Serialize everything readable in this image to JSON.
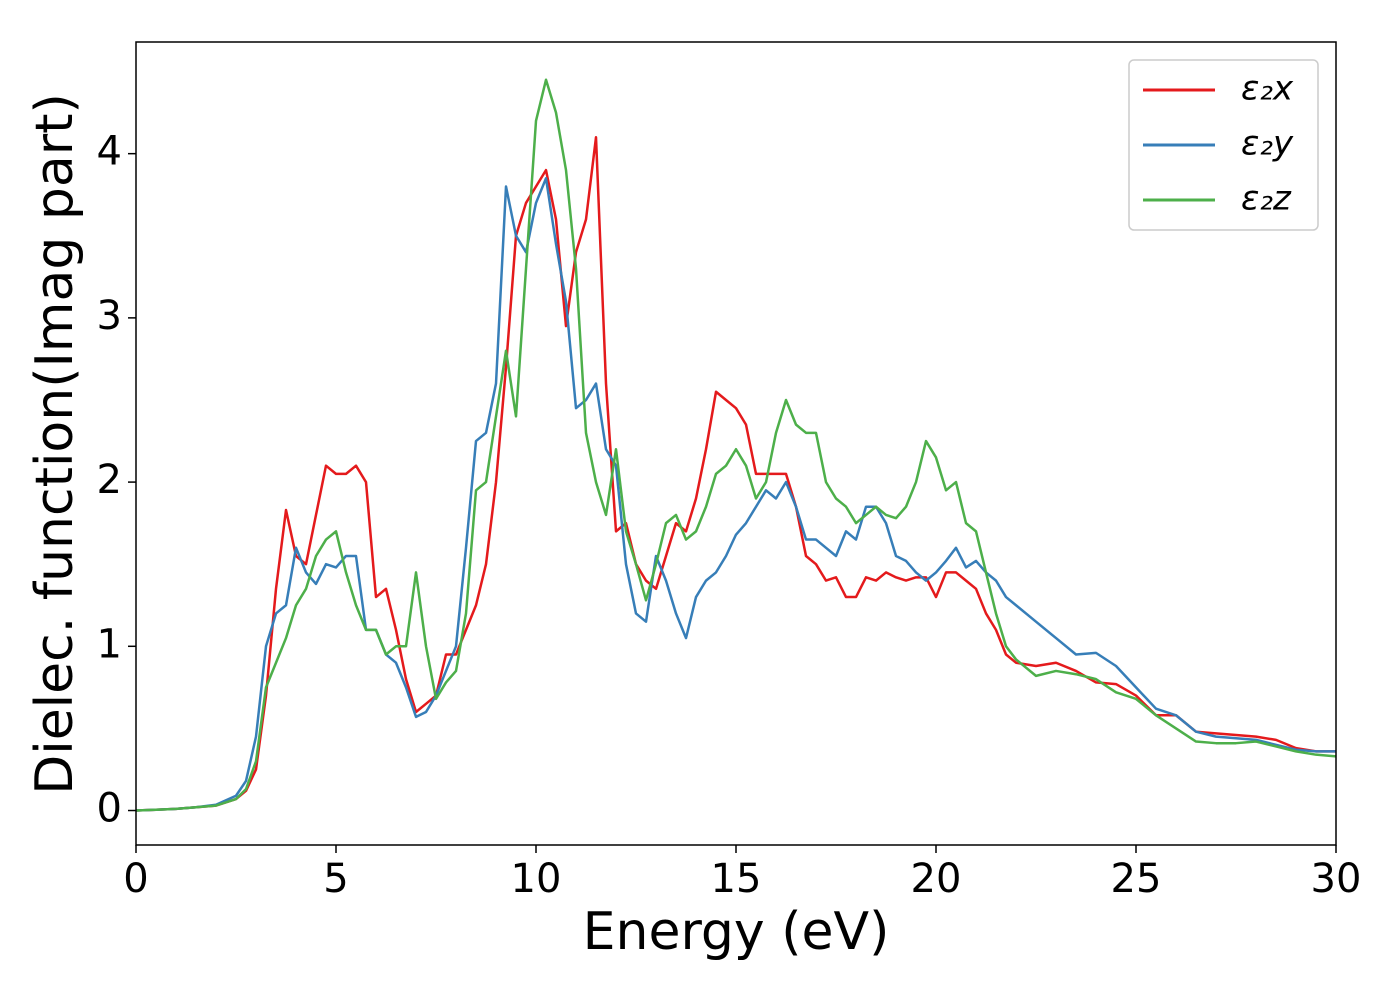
{
  "chart_data": {
    "type": "line",
    "xlabel": "Energy (eV)",
    "ylabel": "Dielec. function(Imag part)",
    "xlim": [
      0,
      30
    ],
    "ylim": [
      -0.21,
      4.68
    ],
    "xticks": [
      0,
      5,
      10,
      15,
      20,
      25,
      30
    ],
    "yticks": [
      0,
      1,
      2,
      3,
      4
    ],
    "legend": "upper right",
    "x": [
      0,
      0.5,
      1,
      1.5,
      2,
      2.5,
      2.75,
      3,
      3.25,
      3.5,
      3.75,
      4,
      4.25,
      4.5,
      4.75,
      5,
      5.25,
      5.5,
      5.75,
      6,
      6.25,
      6.5,
      6.75,
      7,
      7.25,
      7.5,
      7.75,
      8,
      8.25,
      8.5,
      8.75,
      9,
      9.25,
      9.5,
      9.75,
      10,
      10.25,
      10.5,
      10.75,
      11,
      11.25,
      11.5,
      11.75,
      12,
      12.25,
      12.5,
      12.75,
      13,
      13.25,
      13.5,
      13.75,
      14,
      14.25,
      14.5,
      14.75,
      15,
      15.25,
      15.5,
      15.75,
      16,
      16.25,
      16.5,
      16.75,
      17,
      17.25,
      17.5,
      17.75,
      18,
      18.25,
      18.5,
      18.75,
      19,
      19.25,
      19.5,
      19.75,
      20,
      20.25,
      20.5,
      20.75,
      21,
      21.25,
      21.5,
      21.75,
      22,
      22.5,
      23,
      23.5,
      24,
      24.5,
      25,
      25.5,
      26,
      26.5,
      27,
      27.5,
      28,
      28.5,
      29,
      29.5,
      30
    ],
    "series": [
      {
        "name": "ε₂x",
        "color": "#e41a1c",
        "values": [
          0,
          0.005,
          0.01,
          0.02,
          0.03,
          0.07,
          0.12,
          0.25,
          0.7,
          1.35,
          1.83,
          1.55,
          1.5,
          1.8,
          2.1,
          2.05,
          2.05,
          2.1,
          2.0,
          1.3,
          1.35,
          1.1,
          0.8,
          0.6,
          0.65,
          0.7,
          0.95,
          0.95,
          1.1,
          1.25,
          1.5,
          2.0,
          2.7,
          3.5,
          3.7,
          3.8,
          3.9,
          3.6,
          2.95,
          3.4,
          3.6,
          4.1,
          2.6,
          1.7,
          1.75,
          1.5,
          1.4,
          1.35,
          1.55,
          1.75,
          1.7,
          1.9,
          2.2,
          2.55,
          2.5,
          2.45,
          2.35,
          2.05,
          2.05,
          2.05,
          2.05,
          1.85,
          1.55,
          1.5,
          1.4,
          1.42,
          1.3,
          1.3,
          1.42,
          1.4,
          1.45,
          1.42,
          1.4,
          1.42,
          1.42,
          1.3,
          1.45,
          1.45,
          1.4,
          1.35,
          1.2,
          1.1,
          0.95,
          0.9,
          0.88,
          0.9,
          0.85,
          0.78,
          0.77,
          0.7,
          0.58,
          0.58,
          0.48,
          0.47,
          0.46,
          0.45,
          0.43,
          0.38,
          0.36,
          0.36
        ]
      },
      {
        "name": "ε₂y",
        "color": "#377eb8",
        "values": [
          0,
          0.005,
          0.01,
          0.02,
          0.035,
          0.09,
          0.18,
          0.45,
          1.0,
          1.2,
          1.25,
          1.6,
          1.45,
          1.38,
          1.5,
          1.48,
          1.55,
          1.55,
          1.1,
          1.1,
          0.95,
          0.9,
          0.75,
          0.57,
          0.6,
          0.7,
          0.85,
          1.0,
          1.6,
          2.25,
          2.3,
          2.6,
          3.8,
          3.5,
          3.4,
          3.7,
          3.85,
          3.45,
          3.1,
          2.45,
          2.5,
          2.6,
          2.2,
          2.1,
          1.5,
          1.2,
          1.15,
          1.55,
          1.4,
          1.2,
          1.05,
          1.3,
          1.4,
          1.45,
          1.55,
          1.68,
          1.75,
          1.85,
          1.95,
          1.9,
          2.0,
          1.85,
          1.65,
          1.65,
          1.6,
          1.55,
          1.7,
          1.65,
          1.85,
          1.85,
          1.75,
          1.55,
          1.52,
          1.45,
          1.4,
          1.45,
          1.52,
          1.6,
          1.48,
          1.52,
          1.45,
          1.4,
          1.3,
          1.25,
          1.15,
          1.05,
          0.95,
          0.96,
          0.88,
          0.75,
          0.62,
          0.58,
          0.48,
          0.45,
          0.44,
          0.43,
          0.4,
          0.37,
          0.36,
          0.36
        ]
      },
      {
        "name": "ε₂z",
        "color": "#4daf4a",
        "values": [
          0,
          0.005,
          0.01,
          0.02,
          0.03,
          0.07,
          0.13,
          0.3,
          0.75,
          0.9,
          1.05,
          1.25,
          1.35,
          1.55,
          1.65,
          1.7,
          1.45,
          1.25,
          1.1,
          1.1,
          0.95,
          1.0,
          1.0,
          1.45,
          1.0,
          0.68,
          0.78,
          0.85,
          1.2,
          1.95,
          2.0,
          2.4,
          2.8,
          2.4,
          3.3,
          4.2,
          4.45,
          4.25,
          3.9,
          3.3,
          2.3,
          2.0,
          1.8,
          2.2,
          1.7,
          1.5,
          1.28,
          1.5,
          1.75,
          1.8,
          1.65,
          1.7,
          1.85,
          2.05,
          2.1,
          2.2,
          2.1,
          1.9,
          2.0,
          2.3,
          2.5,
          2.35,
          2.3,
          2.3,
          2.0,
          1.9,
          1.85,
          1.75,
          1.8,
          1.85,
          1.8,
          1.78,
          1.85,
          2.0,
          2.25,
          2.15,
          1.95,
          2.0,
          1.75,
          1.7,
          1.45,
          1.2,
          1.0,
          0.92,
          0.82,
          0.85,
          0.83,
          0.8,
          0.72,
          0.68,
          0.58,
          0.5,
          0.42,
          0.41,
          0.41,
          0.42,
          0.39,
          0.36,
          0.34,
          0.33
        ]
      }
    ]
  }
}
